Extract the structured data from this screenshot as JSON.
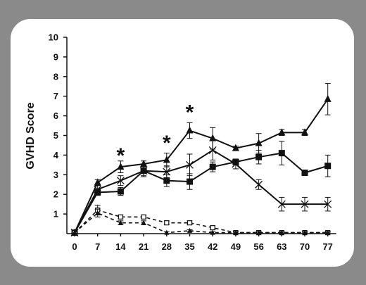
{
  "chart_data": {
    "type": "line",
    "title": "",
    "xlabel": "",
    "ylabel": "GVHD Score",
    "x": [
      0,
      7,
      14,
      21,
      28,
      35,
      42,
      49,
      56,
      63,
      70,
      77
    ],
    "xticks": [
      "0",
      "7",
      "14",
      "21",
      "28",
      "35",
      "42",
      "49",
      "56",
      "63",
      "70",
      "77"
    ],
    "ylim": [
      0,
      10
    ],
    "yticks": [
      "1",
      "2",
      "3",
      "4",
      "5",
      "6",
      "7",
      "8",
      "9",
      "10"
    ],
    "grid": false,
    "legend": "none",
    "series": [
      {
        "marker": "triangle",
        "line_style": "solid",
        "values": [
          0.05,
          2.6,
          3.4,
          3.55,
          3.75,
          5.25,
          4.85,
          4.35,
          4.6,
          5.15,
          5.15,
          6.85
        ],
        "errors": [
          0.1,
          0.15,
          0.3,
          0.15,
          0.35,
          0.4,
          0.55,
          0.1,
          0.5,
          0.15,
          0.15,
          0.8
        ]
      },
      {
        "marker": "square",
        "line_style": "solid",
        "values": [
          0.05,
          2.1,
          2.15,
          3.2,
          2.7,
          2.65,
          3.4,
          3.65,
          3.9,
          4.1,
          3.1,
          3.45
        ],
        "errors": [
          0.1,
          0.15,
          0.2,
          0.3,
          0.3,
          0.4,
          0.25,
          0.15,
          0.35,
          0.6,
          0.1,
          0.55
        ]
      },
      {
        "marker": "x",
        "line_style": "solid",
        "values": [
          0.05,
          2.25,
          2.7,
          3.2,
          3.15,
          3.5,
          4.25,
          3.55,
          2.5,
          1.5,
          1.5,
          1.5
        ],
        "errors": [
          0.1,
          0.2,
          0.25,
          0.25,
          0.3,
          0.55,
          0.5,
          0.25,
          0.25,
          0.35,
          0.35,
          0.35
        ]
      },
      {
        "marker": "open-square",
        "line_style": "dashed",
        "values": [
          0.05,
          1.2,
          0.85,
          0.85,
          0.55,
          0.55,
          0.3,
          0.05,
          0.05,
          0.05,
          0.05,
          0.05
        ],
        "errors": [
          0.1,
          0.25,
          0.1,
          0.1,
          0.1,
          0.1,
          0.1,
          0.05,
          0.05,
          0.05,
          0.05,
          0.05
        ]
      },
      {
        "marker": "open-triangle",
        "line_style": "dashed",
        "values": [
          0.05,
          1.05,
          0.55,
          0.55,
          0.05,
          0.15,
          0.05,
          0.05,
          0.05,
          0.05,
          0.05,
          0.05
        ],
        "errors": [
          0.1,
          0.2,
          0.1,
          0.1,
          0.05,
          0.05,
          0.05,
          0.05,
          0.05,
          0.05,
          0.05,
          0.05
        ]
      }
    ],
    "annotations": [
      {
        "text": "*",
        "x": 14,
        "y": 4.3
      },
      {
        "text": "*",
        "x": 28,
        "y": 4.95
      },
      {
        "text": "*",
        "x": 35,
        "y": 6.5
      }
    ],
    "colors": {
      "line": "#111111",
      "background": "#ffffff",
      "frame": "#8a8a8a"
    }
  }
}
